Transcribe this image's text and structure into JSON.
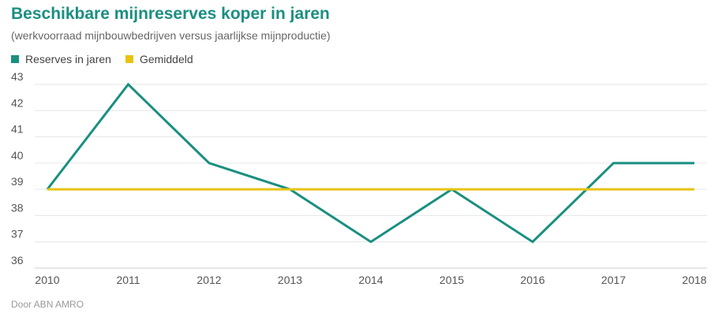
{
  "header": {
    "title": "Beschikbare mijnreserves koper in jaren",
    "subtitle": "(werkvoorraad mijnbouwbedrijven versus jaarlijkse mijnproductie)"
  },
  "footer": {
    "credit": "Door ABN AMRO"
  },
  "colors": {
    "reserves": "#1a8f80",
    "gemiddeld": "#e8c30f",
    "grid": "#e6e6e6"
  },
  "chart_data": {
    "type": "line",
    "title": "Beschikbare mijnreserves koper in jaren",
    "subtitle": "(werkvoorraad mijnbouwbedrijven versus jaarlijkse mijnproductie)",
    "x": [
      "2010",
      "2011",
      "2012",
      "2013",
      "2014",
      "2015",
      "2016",
      "2017",
      "2018"
    ],
    "series": [
      {
        "name": "Reserves in jaren",
        "values": [
          39,
          43,
          40,
          39,
          37,
          39,
          37,
          40,
          40
        ]
      },
      {
        "name": "Gemiddeld",
        "values": [
          39,
          39,
          39,
          39,
          39,
          39,
          39,
          39,
          39
        ]
      }
    ],
    "ylim": [
      36,
      43
    ],
    "yticks": [
      36,
      37,
      38,
      39,
      40,
      41,
      42,
      43
    ],
    "grid": true,
    "legend": "top-left"
  }
}
